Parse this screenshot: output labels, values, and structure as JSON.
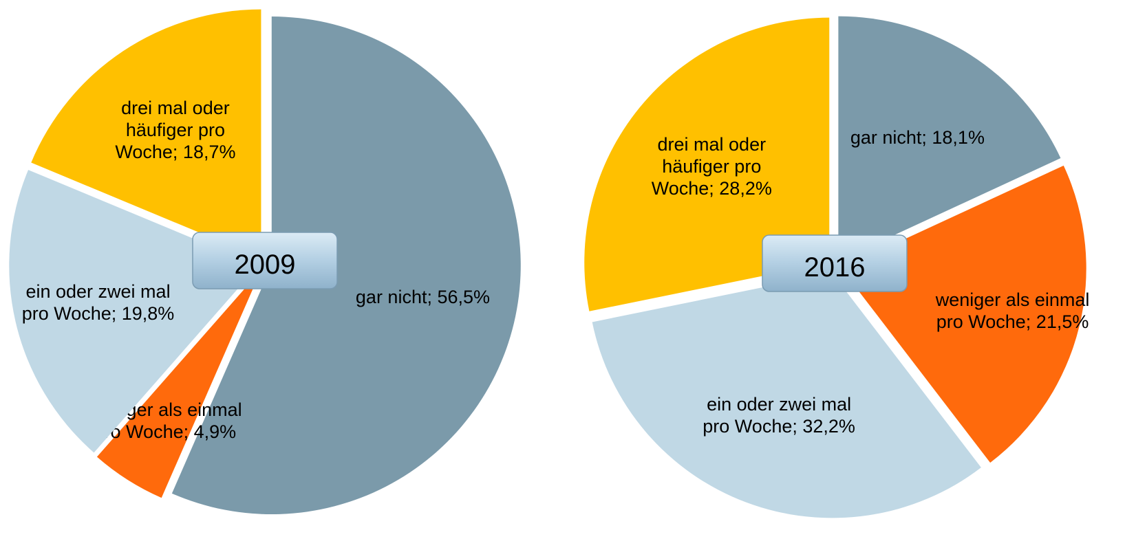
{
  "chart_data": [
    {
      "type": "pie",
      "title": "2009",
      "values": [
        56.5,
        4.9,
        19.8,
        18.7
      ],
      "value_labels": [
        "gar nicht; 56,5%",
        "weniger als einmal pro Woche; 4,9%",
        "ein oder zwei mal pro Woche; 19,8%",
        "drei mal oder häufiger pro Woche; 18,7%"
      ],
      "colors": [
        "#7b9aaa",
        "#ff6a0c",
        "#c0d8e5",
        "#ffc000"
      ]
    },
    {
      "type": "pie",
      "title": "2016",
      "values": [
        18.1,
        21.5,
        32.2,
        28.2
      ],
      "value_labels": [
        "gar nicht; 18,1%",
        "weniger als einmal pro Woche; 21,5%",
        "ein oder zwei mal pro Woche; 32,2%",
        "drei mal oder häufiger pro Woche; 28,2%"
      ],
      "colors": [
        "#7b9aaa",
        "#ff6a0c",
        "#c0d8e5",
        "#ffc000"
      ]
    }
  ]
}
